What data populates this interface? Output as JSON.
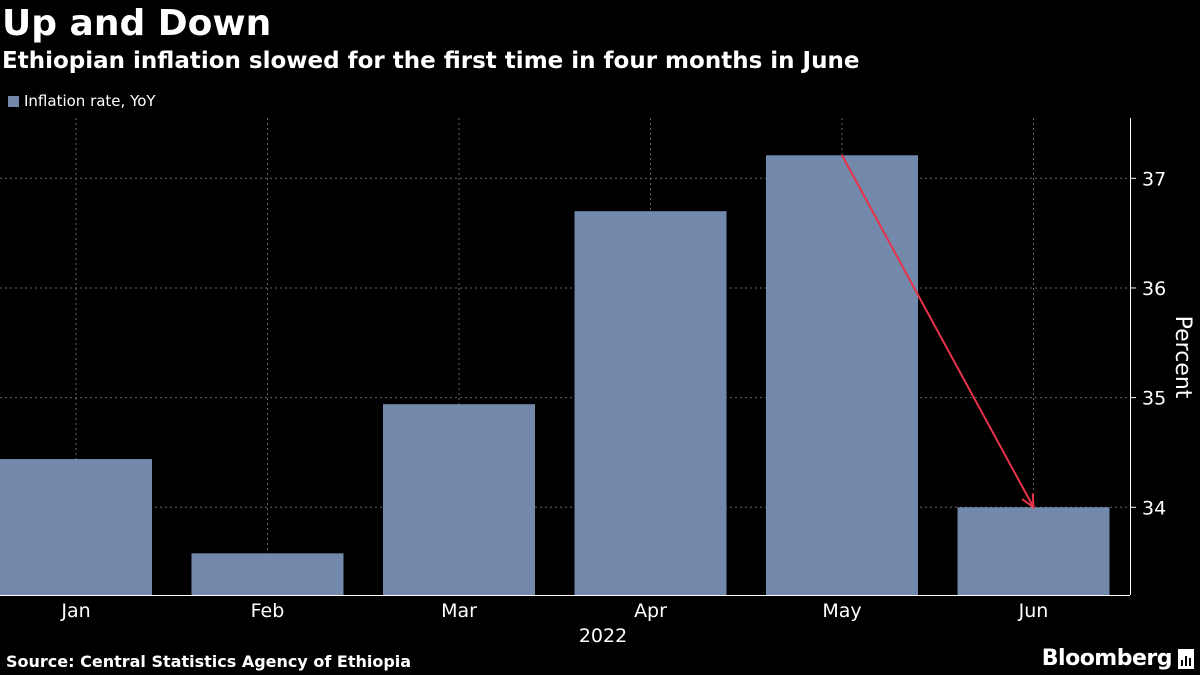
{
  "title": "Up and Down",
  "subtitle": "Ethiopian inflation slowed for the first time in four months in June",
  "source": "Source: Central Statistics Agency of Ethiopia",
  "brand": "Bloomberg",
  "colors": {
    "background": "#000000",
    "bar": "#7289ab",
    "annotation_arrow": "#e8334a",
    "grid": "#666666"
  },
  "chart_data": {
    "type": "bar",
    "categories": [
      "Jan",
      "Feb",
      "Mar",
      "Apr",
      "May",
      "Jun"
    ],
    "series": [
      {
        "name": "Inflation rate, YoY",
        "values": [
          34.44,
          33.58,
          34.94,
          36.7,
          37.21,
          34.0
        ]
      }
    ],
    "x_group_label": "2022",
    "ylabel": "Percent",
    "ylim": [
      33.2,
      37.55
    ],
    "yticks": [
      34,
      35,
      36,
      37
    ],
    "y_axis_side": "right",
    "grid": true,
    "legend": "top-left",
    "annotation": {
      "type": "arrow",
      "from_category": "May",
      "to_category": "Jun"
    }
  }
}
